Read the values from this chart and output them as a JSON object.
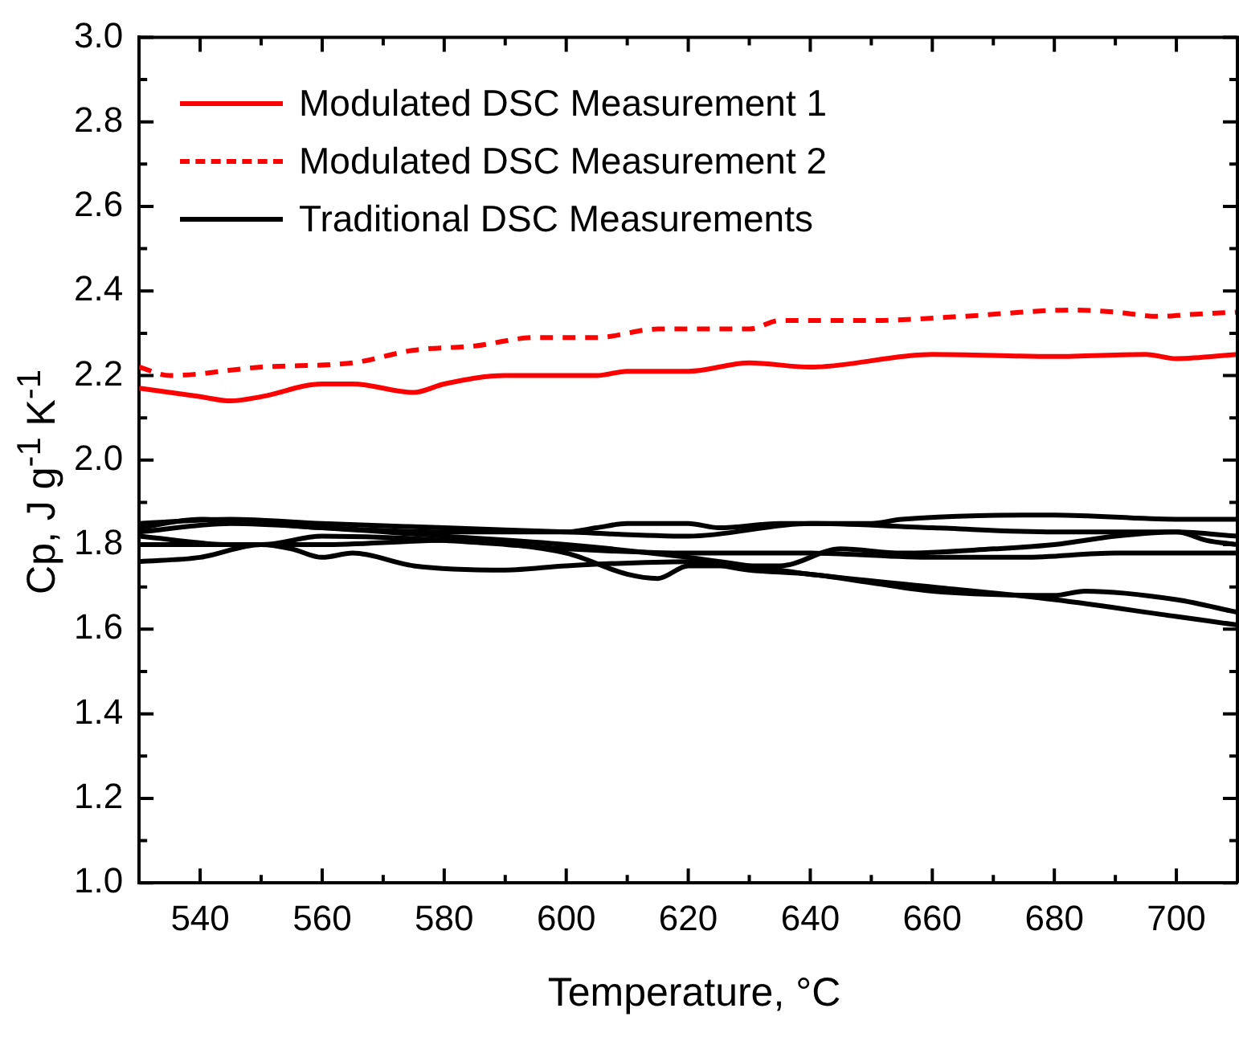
{
  "chart_data": {
    "type": "line",
    "xlabel": "Temperature, °C",
    "ylabel": "Cp, J g$^{-1}$ K$^{-1}$",
    "xlim": [
      530,
      710
    ],
    "xticks": [
      540,
      {
        "value": 550,
        "label": null
      },
      560,
      {
        "value": 570,
        "label": null
      },
      580,
      {
        "value": 590,
        "label": null
      },
      600,
      {
        "value": 610,
        "label": null
      },
      620,
      {
        "value": 630,
        "label": null
      },
      640,
      {
        "value": 650,
        "label": null
      },
      660,
      {
        "value": 670,
        "label": null
      },
      680,
      {
        "value": 690,
        "label": null
      },
      700
    ],
    "ylim": [
      1.0,
      3.0
    ],
    "yticks": [
      {
        "value": 1,
        "label": "1.0"
      },
      {
        "value": 1.1,
        "label": null
      },
      1.2,
      {
        "value": 1.3,
        "label": null
      },
      1.4,
      {
        "value": 1.5,
        "label": null
      },
      1.6,
      {
        "value": 1.7,
        "label": null
      },
      1.8,
      {
        "value": 1.9,
        "label": null
      },
      {
        "value": 2,
        "label": "2.0"
      },
      {
        "value": 2.1,
        "label": null
      },
      2.2,
      {
        "value": 2.3,
        "label": null
      },
      2.4,
      {
        "value": 2.5,
        "label": null
      },
      2.6,
      {
        "value": 2.7,
        "label": null
      },
      2.8,
      {
        "value": 2.9,
        "label": null
      },
      {
        "value": 3,
        "label": "3.0"
      }
    ],
    "grid": false,
    "legend": "top left",
    "marker": "none",
    "series": [
      {
        "name": "Modulated DSC Measurement 1",
        "color": "#ff0000",
        "line_style": "solid",
        "x": [
          530,
          540,
          545,
          550,
          560,
          565,
          575,
          580,
          590,
          600,
          605,
          610,
          620,
          630,
          640,
          660,
          680,
          695,
          700,
          710
        ],
        "values": [
          2.17,
          2.15,
          2.14,
          2.15,
          2.18,
          2.18,
          2.16,
          2.18,
          2.2,
          2.2,
          2.2,
          2.21,
          2.21,
          2.23,
          2.22,
          2.25,
          2.245,
          2.25,
          2.24,
          2.25
        ]
      },
      {
        "name": "Modulated DSC Measurement 2",
        "color": "#ff0000",
        "line_style": "dashed",
        "x": [
          530,
          535,
          550,
          565,
          575,
          585,
          595,
          605,
          615,
          630,
          635,
          650,
          665,
          683,
          690,
          697,
          703,
          710
        ],
        "values": [
          2.22,
          2.2,
          2.22,
          2.23,
          2.26,
          2.27,
          2.29,
          2.29,
          2.31,
          2.31,
          2.33,
          2.33,
          2.34,
          2.355,
          2.35,
          2.34,
          2.345,
          2.35
        ]
      },
      {
        "name": "Traditional DSC Measurements",
        "color": "#000000",
        "line_style": "solid",
        "x": [
          530,
          540,
          560,
          580,
          600,
          605,
          610,
          620,
          625,
          635,
          650,
          655,
          680,
          700,
          710
        ],
        "values": [
          1.84,
          1.86,
          1.84,
          1.83,
          1.83,
          1.84,
          1.85,
          1.85,
          1.84,
          1.85,
          1.85,
          1.86,
          1.87,
          1.86,
          1.86
        ]
      },
      {
        "color": "#000000",
        "line_style": "solid",
        "x": [
          530,
          545,
          560,
          580,
          600,
          620,
          640,
          660,
          680,
          700,
          710
        ],
        "values": [
          1.85,
          1.86,
          1.85,
          1.84,
          1.83,
          1.82,
          1.85,
          1.84,
          1.83,
          1.83,
          1.82
        ]
      },
      {
        "color": "#000000",
        "line_style": "solid",
        "x": [
          530,
          545,
          560,
          580,
          600,
          620,
          640,
          660,
          675,
          690,
          710
        ],
        "values": [
          1.82,
          1.8,
          1.8,
          1.81,
          1.79,
          1.78,
          1.78,
          1.77,
          1.77,
          1.78,
          1.78
        ]
      },
      {
        "color": "#000000",
        "line_style": "solid",
        "x": [
          530,
          550,
          560,
          580,
          600,
          610,
          615,
          620,
          635,
          645,
          655,
          670,
          680,
          690,
          700,
          705,
          710
        ],
        "values": [
          1.8,
          1.8,
          1.82,
          1.81,
          1.78,
          1.73,
          1.72,
          1.75,
          1.75,
          1.79,
          1.78,
          1.79,
          1.8,
          1.82,
          1.83,
          1.81,
          1.8
        ]
      },
      {
        "color": "#000000",
        "line_style": "solid",
        "x": [
          530,
          540,
          550,
          555,
          560,
          565,
          575,
          590,
          600,
          620,
          630,
          640,
          650,
          660,
          680,
          685,
          700,
          710
        ],
        "values": [
          1.76,
          1.77,
          1.8,
          1.79,
          1.77,
          1.78,
          1.75,
          1.74,
          1.75,
          1.76,
          1.74,
          1.73,
          1.71,
          1.69,
          1.68,
          1.69,
          1.67,
          1.64
        ]
      },
      {
        "color": "#000000",
        "line_style": "solid",
        "x": [
          530,
          545,
          560,
          580,
          600,
          620,
          640,
          660,
          680,
          700,
          710
        ],
        "values": [
          1.83,
          1.85,
          1.84,
          1.82,
          1.8,
          1.77,
          1.73,
          1.7,
          1.67,
          1.63,
          1.61
        ]
      }
    ]
  }
}
